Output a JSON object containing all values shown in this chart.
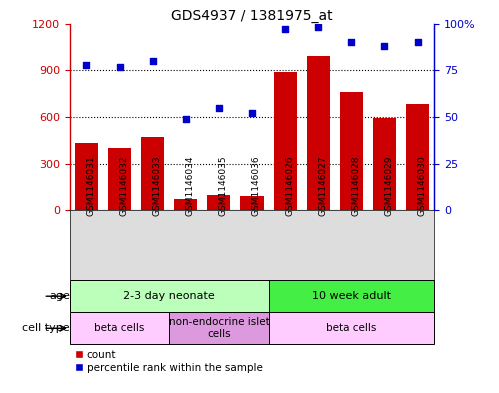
{
  "title": "GDS4937 / 1381975_at",
  "samples": [
    "GSM1146031",
    "GSM1146032",
    "GSM1146033",
    "GSM1146034",
    "GSM1146035",
    "GSM1146036",
    "GSM1146026",
    "GSM1146027",
    "GSM1146028",
    "GSM1146029",
    "GSM1146030"
  ],
  "counts": [
    430,
    400,
    470,
    70,
    100,
    90,
    890,
    990,
    760,
    590,
    680
  ],
  "percentiles": [
    78,
    77,
    80,
    49,
    55,
    52,
    97,
    98,
    90,
    88,
    90
  ],
  "ylim_left": [
    0,
    1200
  ],
  "ylim_right": [
    0,
    100
  ],
  "yticks_left": [
    0,
    300,
    600,
    900,
    1200
  ],
  "ytick_labels_left": [
    "0",
    "300",
    "600",
    "900",
    "1200"
  ],
  "yticks_right": [
    0,
    25,
    50,
    75,
    100
  ],
  "ytick_labels_right": [
    "0",
    "25",
    "50",
    "75",
    "100%"
  ],
  "bar_color": "#cc0000",
  "scatter_color": "#0000cc",
  "age_groups": [
    {
      "label": "2-3 day neonate",
      "start": 0,
      "end": 6,
      "color": "#bbffbb"
    },
    {
      "label": "10 week adult",
      "start": 6,
      "end": 11,
      "color": "#44ee44"
    }
  ],
  "cell_type_groups": [
    {
      "label": "beta cells",
      "start": 0,
      "end": 3,
      "color": "#ffccff"
    },
    {
      "label": "non-endocrine islet\ncells",
      "start": 3,
      "end": 6,
      "color": "#dd99dd"
    },
    {
      "label": "beta cells",
      "start": 6,
      "end": 11,
      "color": "#ffccff"
    }
  ],
  "age_label": "age",
  "cell_type_label": "cell type",
  "tick_bg_color": "#dddddd",
  "legend_items": [
    {
      "color": "#cc0000",
      "label": "count"
    },
    {
      "color": "#0000cc",
      "label": "percentile rank within the sample"
    }
  ]
}
